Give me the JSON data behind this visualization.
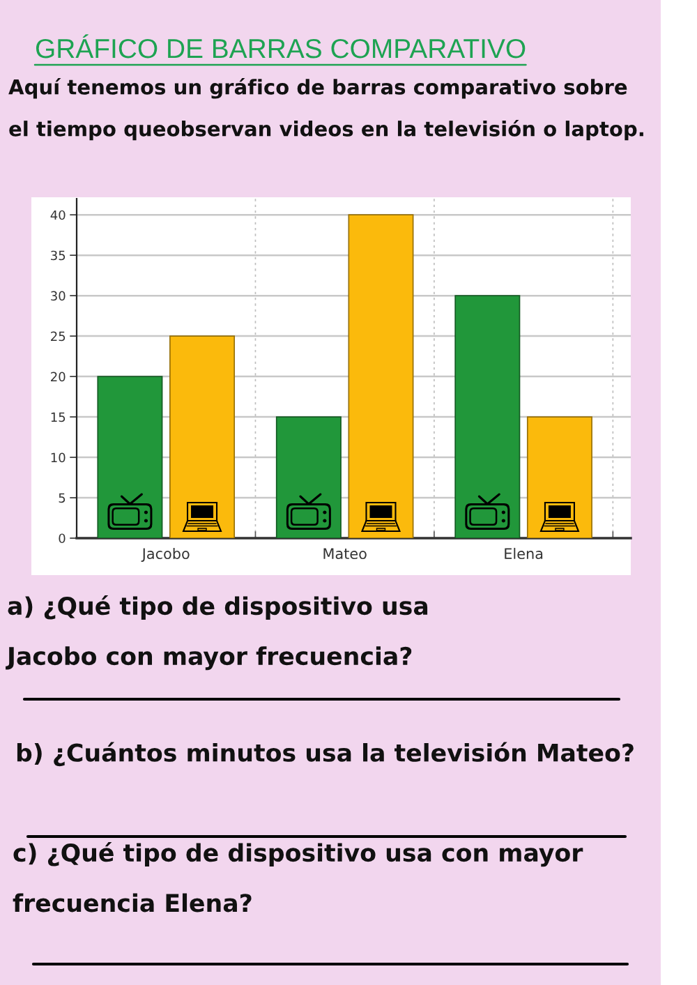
{
  "chart_data": {
    "type": "bar",
    "title": "GRÁFICO DE BARRAS COMPARATIVO",
    "subtitle": "Aquí tenemos un gráfico de barras comparativo sobre el tiempo queobservan videos en la televisión o laptop.",
    "categories": [
      "Jacobo",
      "Mateo",
      "Elena"
    ],
    "series": [
      {
        "color": "#21973a",
        "values": [
          20,
          15,
          30
        ]
      },
      {
        "color": "#fbba0c",
        "values": [
          25,
          40,
          15
        ]
      }
    ],
    "ylim": [
      0,
      42
    ],
    "yticks": [
      0,
      5,
      10,
      15,
      20,
      25,
      30,
      35,
      40
    ],
    "grid": true,
    "annotations": [
      "a) ¿Qué tipo de dispositivo usa Jacobo con mayor frecuencia?",
      "b) ¿Cuántos minutos usa la televisión Mateo?",
      "c) ¿Qué tipo de dispositivo usa con mayor frecuencia Elena?"
    ]
  }
}
